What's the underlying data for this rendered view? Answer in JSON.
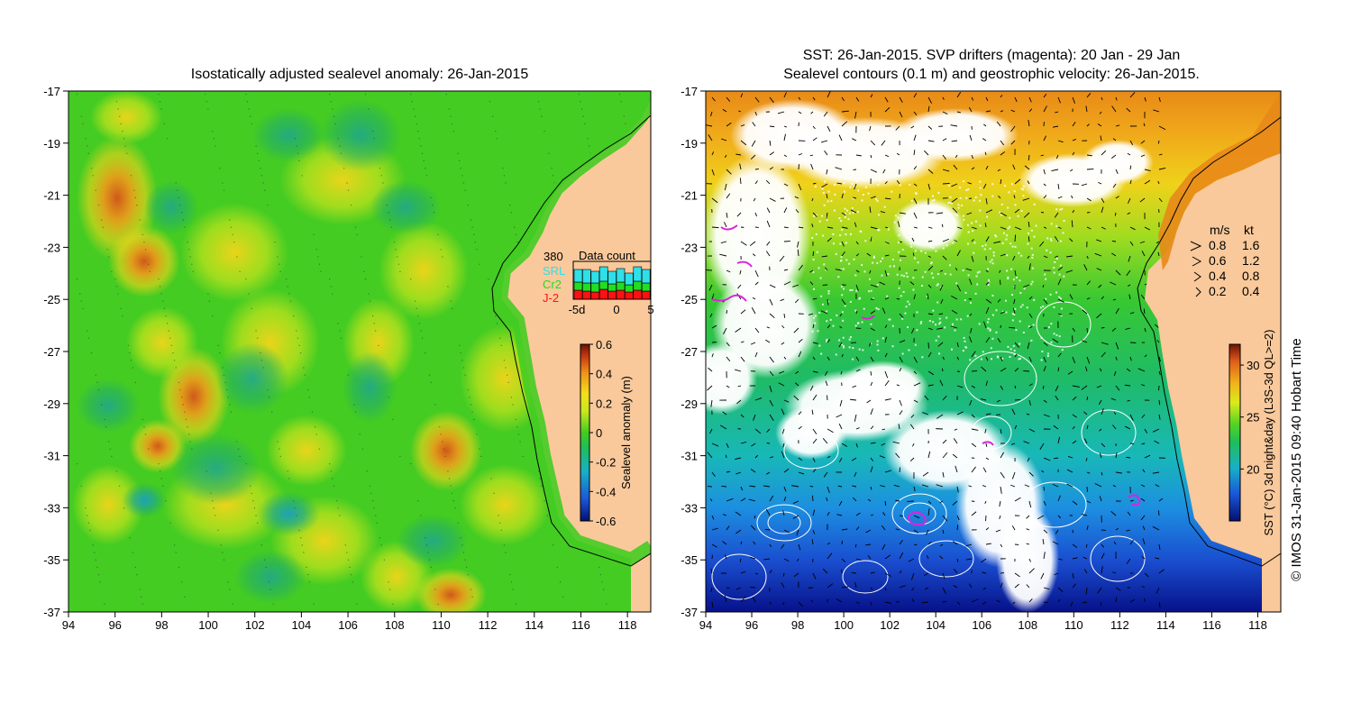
{
  "left_panel": {
    "title": "Isostatically adjusted sealevel anomaly: 26-Jan-2015",
    "colorbar": {
      "label": "Sealevel anomaly (m)",
      "range": [
        -0.6,
        0.6
      ],
      "ticks": [
        "0.6",
        "0.4",
        "0.2",
        "0",
        "-0.2",
        "-0.4",
        "-0.6"
      ]
    },
    "data_count": {
      "title": "Data count",
      "max_label": "380",
      "missions": [
        {
          "name": "SRL",
          "color": "#2ee0e8"
        },
        {
          "name": "Cr2",
          "color": "#22dd22"
        },
        {
          "name": "J-2",
          "color": "#ff1111"
        }
      ],
      "x_ticks": [
        "-5d",
        "0",
        "5"
      ]
    }
  },
  "right_panel": {
    "title_line1": "SST: 26-Jan-2015. SVP drifters (magenta): 20 Jan - 29 Jan",
    "title_line2": "Sealevel contours (0.1 m) and geostrophic velocity: 26-Jan-2015.",
    "velocity_legend": {
      "header_ms": "m/s",
      "header_kt": "kt",
      "rows": [
        {
          "ms": "0.8",
          "kt": "1.6"
        },
        {
          "ms": "0.6",
          "kt": "1.2"
        },
        {
          "ms": "0.4",
          "kt": "0.8"
        },
        {
          "ms": "0.2",
          "kt": "0.4"
        }
      ]
    },
    "colorbar": {
      "label": "SST (°C) 3d night&day (L3S-3d QL>=2)",
      "range": [
        15,
        32
      ],
      "ticks": [
        "30",
        "25",
        "20"
      ]
    }
  },
  "axes": {
    "x_ticks": [
      "94",
      "96",
      "98",
      "100",
      "102",
      "104",
      "106",
      "108",
      "110",
      "112",
      "114",
      "116",
      "118"
    ],
    "y_ticks": [
      "-17",
      "-19",
      "-21",
      "-23",
      "-25",
      "-27",
      "-29",
      "-31",
      "-33",
      "-35",
      "-37"
    ]
  },
  "credit": "© IMOS 31-Jan-2015 09:40 Hobart Time",
  "colors": {
    "land": "#f9c99b",
    "sla_background": "#44cc22",
    "magenta_drifters": "#dd22dd"
  }
}
